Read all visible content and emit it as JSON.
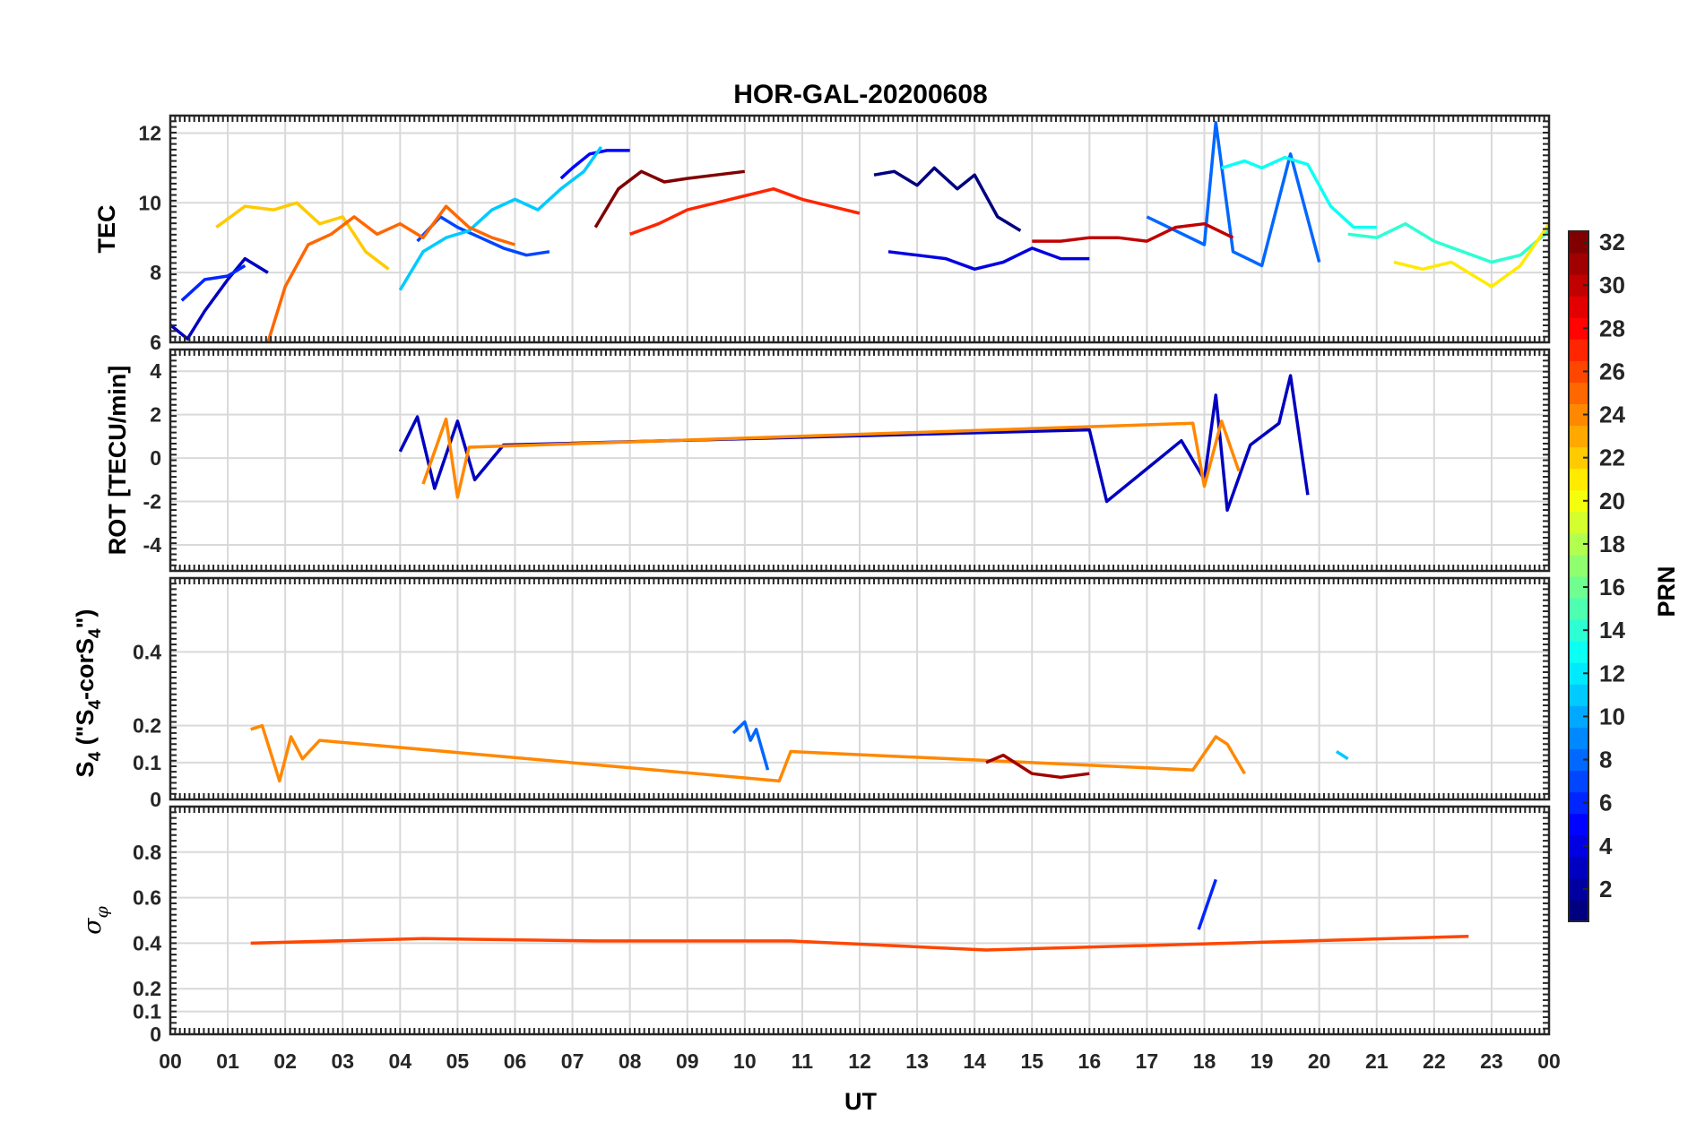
{
  "figure": {
    "title": "HOR-GAL-20200608",
    "xlabel": "UT",
    "colorbar_label": "PRN"
  },
  "chart_data": [
    {
      "type": "line",
      "panel": "TEC",
      "ylabel": "TEC",
      "xlim": [
        0,
        24
      ],
      "ylim": [
        6,
        12.5
      ],
      "yticks": [
        6,
        8,
        10,
        12
      ],
      "grid": true,
      "color_by": "PRN",
      "series": [
        {
          "prn": 1,
          "x": [
            12.25,
            12.6,
            13.0,
            13.3,
            13.7,
            14.0,
            14.4,
            14.8
          ],
          "y": [
            10.8,
            10.9,
            10.5,
            11.0,
            10.4,
            10.8,
            9.6,
            9.2
          ]
        },
        {
          "prn": 3,
          "x": [
            0.0,
            0.3,
            0.6,
            1.0,
            1.3,
            1.7
          ],
          "y": [
            6.5,
            6.1,
            6.9,
            7.8,
            8.4,
            8.0
          ]
        },
        {
          "prn": 4,
          "x": [
            12.5,
            13.0,
            13.5,
            14.0,
            14.5,
            15.0,
            15.5,
            16.0
          ],
          "y": [
            8.6,
            8.5,
            8.4,
            8.1,
            8.3,
            8.7,
            8.4,
            8.4
          ]
        },
        {
          "prn": 5,
          "x": [
            6.8,
            7.0,
            7.3,
            7.6,
            8.0
          ],
          "y": [
            10.7,
            11.0,
            11.4,
            11.5,
            11.5
          ]
        },
        {
          "prn": 6,
          "x": [
            0.2,
            0.6,
            1.0,
            1.3
          ],
          "y": [
            7.2,
            7.8,
            7.9,
            8.2
          ]
        },
        {
          "prn": 7,
          "x": [
            4.3,
            4.7,
            5.0,
            5.4,
            5.8,
            6.2,
            6.6
          ],
          "y": [
            8.9,
            9.6,
            9.3,
            9.0,
            8.7,
            8.5,
            8.6
          ]
        },
        {
          "prn": 8,
          "x": [
            17.0,
            17.5,
            18.0,
            18.2,
            18.5,
            19.0,
            19.5,
            20.0
          ],
          "y": [
            9.6,
            9.2,
            8.8,
            12.3,
            8.6,
            8.2,
            11.4,
            8.3
          ]
        },
        {
          "prn": 11,
          "x": [
            4.0,
            4.4,
            4.8,
            5.2,
            5.6,
            6.0,
            6.4,
            6.8,
            7.2,
            7.5
          ],
          "y": [
            7.5,
            8.6,
            9.0,
            9.2,
            9.8,
            10.1,
            9.8,
            10.4,
            10.9,
            11.6
          ]
        },
        {
          "prn": 13,
          "x": [
            18.3,
            18.7,
            19.0,
            19.4,
            19.8,
            20.2,
            20.6,
            21.0
          ],
          "y": [
            11.0,
            11.2,
            11.0,
            11.3,
            11.1,
            9.9,
            9.3,
            9.3
          ]
        },
        {
          "prn": 14,
          "x": [
            20.5,
            21.0,
            21.5,
            22.0,
            22.5,
            23.0,
            23.5,
            24.0
          ],
          "y": [
            9.1,
            9.0,
            9.4,
            8.9,
            8.6,
            8.3,
            8.5,
            9.2
          ]
        },
        {
          "prn": 21,
          "x": [
            21.3,
            21.8,
            22.3,
            22.6,
            23.0,
            23.5,
            24.0
          ],
          "y": [
            8.3,
            8.1,
            8.3,
            8.0,
            7.6,
            8.2,
            9.4
          ]
        },
        {
          "prn": 22,
          "x": [
            0.8,
            1.3,
            1.8,
            2.2,
            2.6,
            3.0,
            3.4,
            3.8
          ],
          "y": [
            9.3,
            9.9,
            9.8,
            10.0,
            9.4,
            9.6,
            8.6,
            8.1
          ]
        },
        {
          "prn": 25,
          "x": [
            1.7,
            2.0,
            2.4,
            2.8,
            3.2,
            3.6,
            4.0,
            4.4,
            4.8,
            5.2,
            5.6,
            6.0
          ],
          "y": [
            6.0,
            7.6,
            8.8,
            9.1,
            9.6,
            9.1,
            9.4,
            9.0,
            9.9,
            9.3,
            9.0,
            8.8
          ]
        },
        {
          "prn": 27,
          "x": [
            8.0,
            8.5,
            9.0,
            9.5,
            10.0,
            10.5,
            11.0,
            11.5,
            12.0
          ],
          "y": [
            9.1,
            9.4,
            9.8,
            10.0,
            10.2,
            10.4,
            10.1,
            9.9,
            9.7
          ]
        },
        {
          "prn": 30,
          "x": [
            15.0,
            15.5,
            16.0,
            16.5,
            17.0,
            17.5,
            18.0,
            18.5
          ],
          "y": [
            8.9,
            8.9,
            9.0,
            9.0,
            8.9,
            9.3,
            9.4,
            9.0
          ]
        },
        {
          "prn": 32,
          "x": [
            7.4,
            7.8,
            8.2,
            8.6,
            9.0,
            9.5,
            10.0
          ],
          "y": [
            9.3,
            10.4,
            10.9,
            10.6,
            10.7,
            10.8,
            10.9
          ]
        }
      ]
    },
    {
      "type": "line",
      "panel": "ROT",
      "ylabel": "ROT [TECU/min]",
      "xlim": [
        0,
        24
      ],
      "ylim": [
        -5.2,
        5
      ],
      "yticks": [
        -4,
        -2,
        0,
        2,
        4
      ],
      "grid": true,
      "series": [
        {
          "prn": 3,
          "x": [
            4.0,
            4.3,
            4.6,
            5.0,
            5.3,
            5.8,
            16.0,
            16.3,
            17.6,
            18.0,
            18.2,
            18.4,
            18.8,
            19.3,
            19.5,
            19.8
          ],
          "y": [
            0.3,
            1.9,
            -1.4,
            1.7,
            -1.0,
            0.6,
            1.3,
            -2.0,
            0.8,
            -1.0,
            2.9,
            -2.4,
            0.6,
            1.6,
            3.8,
            -1.7
          ]
        },
        {
          "prn": 24,
          "x": [
            4.4,
            4.8,
            5.0,
            5.2,
            17.8,
            18.0,
            18.3,
            18.6
          ],
          "y": [
            -1.2,
            1.8,
            -1.8,
            0.5,
            1.6,
            -1.3,
            1.7,
            -0.6
          ]
        }
      ]
    },
    {
      "type": "line",
      "panel": "S4",
      "ylabel": "S4 (\"S4-corS4\")",
      "xlim": [
        0,
        24
      ],
      "ylim": [
        0,
        0.6
      ],
      "yticks": [
        0,
        0.1,
        0.2,
        0.4
      ],
      "grid": true,
      "series": [
        {
          "prn": 8,
          "x": [
            9.8,
            10.0,
            10.1,
            10.2,
            10.4
          ],
          "y": [
            0.18,
            0.21,
            0.16,
            0.19,
            0.08
          ]
        },
        {
          "prn": 24,
          "x": [
            1.4,
            1.6,
            1.9,
            2.1,
            2.3,
            2.6,
            10.6,
            10.8,
            17.8,
            18.2,
            18.4,
            18.7
          ],
          "y": [
            0.19,
            0.2,
            0.05,
            0.17,
            0.11,
            0.16,
            0.05,
            0.13,
            0.08,
            0.17,
            0.15,
            0.07
          ]
        },
        {
          "prn": 31,
          "x": [
            14.2,
            14.5,
            15.0,
            15.5,
            16.0
          ],
          "y": [
            0.1,
            0.12,
            0.07,
            0.06,
            0.07
          ]
        },
        {
          "prn": 11,
          "x": [
            20.3,
            20.5
          ],
          "y": [
            0.13,
            0.11
          ]
        }
      ]
    },
    {
      "type": "line",
      "panel": "sigma_phi",
      "ylabel": "σφ",
      "xlim": [
        0,
        24
      ],
      "ylim": [
        0,
        1
      ],
      "yticks": [
        0,
        0.1,
        0.2,
        0.4,
        0.6,
        0.8
      ],
      "grid": true,
      "series": [
        {
          "prn": 6,
          "x": [
            17.9,
            18.2
          ],
          "y": [
            0.46,
            0.68
          ]
        },
        {
          "prn": 26,
          "x": [
            1.4,
            4.4,
            7.4,
            10.8,
            14.2,
            22.6
          ],
          "y": [
            0.4,
            0.42,
            0.41,
            0.41,
            0.37,
            0.43
          ]
        }
      ]
    }
  ],
  "colorbar": {
    "min": 1,
    "max": 32,
    "ticks": [
      2,
      4,
      6,
      8,
      10,
      12,
      14,
      16,
      18,
      20,
      22,
      24,
      26,
      28,
      30,
      32
    ]
  }
}
